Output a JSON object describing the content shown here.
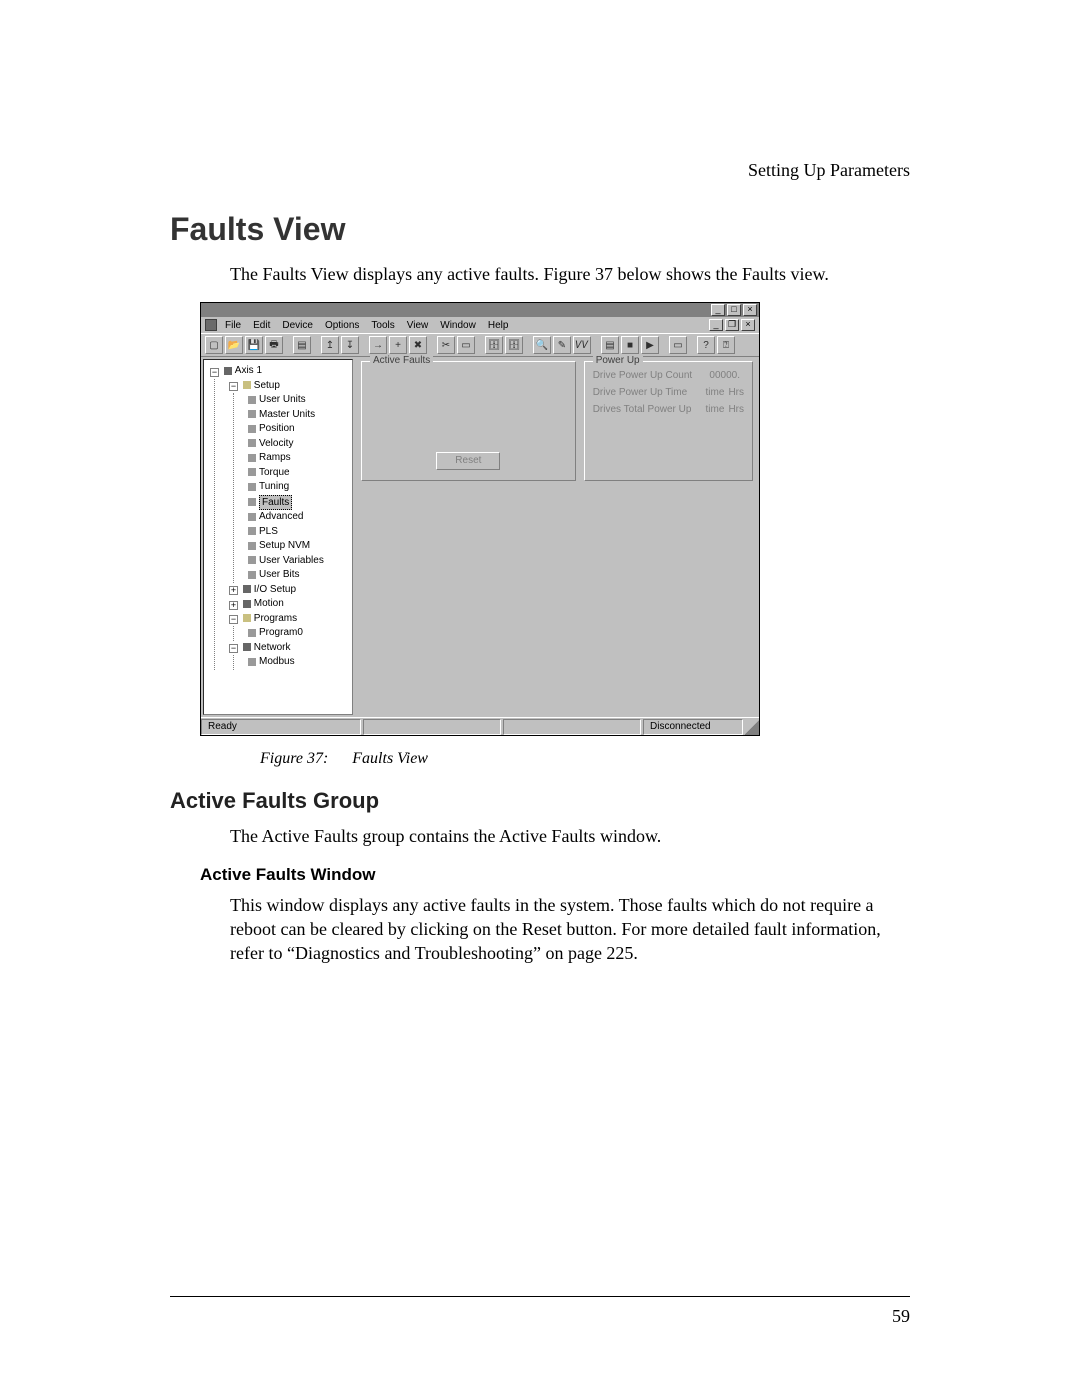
{
  "header": {
    "breadcrumb": "Setting Up Parameters"
  },
  "headings": {
    "h1": "Faults View",
    "h2": "Active Faults Group",
    "h3": "Active Faults Window"
  },
  "paragraphs": {
    "intro": "The Faults View displays any active faults. Figure 37 below shows the Faults view.",
    "caption_prefix": "Figure 37:",
    "caption_title": "Faults View",
    "afg": "The Active Faults group contains the Active Faults window.",
    "afw": "This window displays any active faults in the system. Those faults which do not require a reboot can be cleared by clicking on the Reset button. For more detailed fault information, refer to “Diagnostics and Troubleshooting” on page 225."
  },
  "page_number": "59",
  "screenshot": {
    "menus": [
      "File",
      "Edit",
      "Device",
      "Options",
      "Tools",
      "View",
      "Window",
      "Help"
    ],
    "window_buttons": [
      "_",
      "□",
      "×"
    ],
    "mdi_buttons": [
      "_",
      "❐",
      "×"
    ],
    "toolbar_glyphs": [
      "▢",
      "📂",
      "💾",
      "🖶",
      "│",
      "▤",
      "│",
      "↥",
      "↧",
      "│",
      "→",
      "+",
      "✖",
      "│",
      "✂",
      "▭",
      "│",
      "🗄",
      "🗄",
      "│",
      "🔍",
      "✎",
      "𝑉𝑉",
      "│",
      "▤",
      "■",
      "▶",
      "│",
      "▭",
      "│",
      "?",
      "⍰"
    ],
    "tree": {
      "root": "Axis 1",
      "setup": "Setup",
      "setup_items": [
        "User Units",
        "Master Units",
        "Position",
        "Velocity",
        "Ramps",
        "Torque",
        "Tuning"
      ],
      "faults": "Faults",
      "after_faults": [
        "Advanced",
        "PLS",
        "Setup NVM",
        "User Variables",
        "User Bits"
      ],
      "iosetup": "I/O Setup",
      "motion": "Motion",
      "programs": "Programs",
      "program0": "Program0",
      "network": "Network",
      "modbus": "Modbus"
    },
    "groups": {
      "active_faults": "Active Faults",
      "power_up": "Power Up",
      "reset": "Reset"
    },
    "power_up_rows": [
      {
        "label": "Drive Power Up Count",
        "value": "00000.",
        "unit": ""
      },
      {
        "label": "Drive Power Up Time",
        "value": "time",
        "unit": "Hrs"
      },
      {
        "label": "Drives Total Power Up",
        "value": "time",
        "unit": "Hrs"
      }
    ],
    "status": {
      "ready": "Ready",
      "connection": "Disconnected"
    }
  }
}
